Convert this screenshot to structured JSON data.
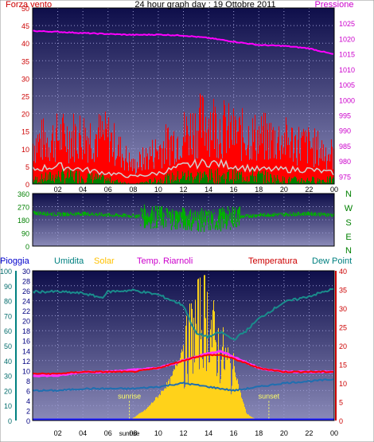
{
  "chart_data": [
    {
      "type": "line",
      "title": "24 hour graph day : 19 Ottobre 2011",
      "left_axis_label": "Forza vento",
      "right_axis_label": "Pressione",
      "left_ticks": [
        0,
        5,
        10,
        15,
        20,
        25,
        30,
        35,
        40,
        45,
        50
      ],
      "right_ticks": [
        975,
        980,
        985,
        990,
        995,
        1000,
        1005,
        1010,
        1015,
        1020,
        1025
      ],
      "x_ticks": [
        "02",
        "04",
        "06",
        "08",
        "10",
        "12",
        "14",
        "16",
        "18",
        "20",
        "22",
        "00"
      ],
      "ylim_left": [
        0,
        50
      ],
      "ylim_right": [
        972.5,
        1030
      ],
      "colors": {
        "gust": "#ff0000",
        "average": "#d0d0d0",
        "min": "#008000",
        "pressure": "#ff00ff"
      },
      "series": [
        {
          "key": "pressure",
          "axis": "right",
          "x": [
            0,
            2,
            4,
            6,
            8,
            10,
            12,
            14,
            16,
            18,
            20,
            22,
            24
          ],
          "values": [
            1022.5,
            1022.2,
            1021.8,
            1021.5,
            1021.2,
            1021.3,
            1021.0,
            1020.2,
            1019.0,
            1017.9,
            1017.6,
            1016.8,
            1014.8
          ]
        },
        {
          "key": "gust",
          "axis": "left",
          "x": [
            0,
            2,
            4,
            6,
            8,
            10,
            12,
            14,
            16,
            18,
            20,
            22,
            24
          ],
          "values": [
            14,
            16,
            17,
            16,
            6,
            12,
            17,
            22,
            17,
            16,
            15,
            13,
            10
          ]
        },
        {
          "key": "average",
          "axis": "left",
          "x": [
            0,
            2,
            4,
            6,
            8,
            10,
            12,
            14,
            16,
            18,
            20,
            22,
            24
          ],
          "values": [
            4,
            5,
            4,
            3,
            2,
            3,
            5,
            6,
            5,
            4,
            4,
            4,
            3
          ]
        },
        {
          "key": "min",
          "axis": "left",
          "x": [
            0,
            2,
            4,
            6,
            8,
            10,
            12,
            14,
            16,
            18,
            20,
            22,
            24
          ],
          "values": [
            1,
            2,
            2,
            1,
            0,
            1,
            2,
            2,
            2,
            2,
            1,
            1,
            1
          ]
        }
      ]
    },
    {
      "type": "scatter",
      "left_ticks": [
        0,
        90,
        180,
        270,
        360
      ],
      "right_labels": [
        "N",
        "W",
        "S",
        "E",
        "N"
      ],
      "x_ticks": [],
      "ylim": [
        0,
        360
      ],
      "colors": {
        "direction": "#00b000"
      },
      "series": [
        {
          "key": "direction",
          "x": [
            0,
            2,
            4,
            6,
            8,
            10,
            12,
            14,
            16,
            18,
            20,
            22,
            24
          ],
          "values": [
            230,
            220,
            225,
            215,
            210,
            200,
            190,
            175,
            200,
            215,
            220,
            225,
            215
          ]
        }
      ]
    },
    {
      "type": "line",
      "legend": [
        {
          "label": "Pioggia",
          "color": "#0000cc"
        },
        {
          "label": "Umidita",
          "color": "#008080"
        },
        {
          "label": "Solar",
          "color": "#ffc000"
        },
        {
          "label": "Temp. Riarnoli",
          "color": "#cc00cc"
        },
        {
          "label": "Temperatura",
          "color": "#cc0000"
        },
        {
          "label": "Dew Point",
          "color": "#008080"
        }
      ],
      "humidity_ticks": [
        0,
        10,
        20,
        30,
        40,
        50,
        60,
        70,
        80,
        90,
        100
      ],
      "rain_ticks": [
        0,
        2,
        4,
        6,
        8,
        10,
        12,
        14,
        16,
        18,
        20,
        22,
        24,
        26,
        28,
        30
      ],
      "temp_ticks": [
        0,
        5,
        10,
        15,
        20,
        25,
        30,
        35,
        40
      ],
      "x_ticks": [
        "02",
        "04",
        "06",
        "08",
        "10",
        "12",
        "14",
        "16",
        "18",
        "20",
        "22",
        "00"
      ],
      "annotations": [
        "sunrise",
        "sunset"
      ],
      "ylim_humidity": [
        0,
        100
      ],
      "ylim_temp": [
        0,
        40
      ],
      "series": [
        {
          "key": "humidity",
          "axis": "humidity",
          "x": [
            0,
            2,
            4,
            5.5,
            6,
            8,
            10,
            12,
            13,
            14,
            15,
            16,
            17,
            18,
            20,
            22,
            24
          ],
          "values": [
            86,
            86,
            85,
            82,
            86,
            87,
            84,
            77,
            58,
            56,
            59,
            54,
            60,
            68,
            79,
            83,
            88
          ]
        },
        {
          "key": "temp_riarnoli",
          "axis": "temp",
          "x": [
            0,
            2,
            4,
            6,
            8,
            10,
            12,
            13,
            14,
            15,
            16,
            18,
            20,
            22,
            24
          ],
          "values": [
            12,
            12,
            13,
            13,
            13.5,
            14,
            16,
            17,
            18,
            18.5,
            17,
            14,
            13,
            13,
            13
          ]
        },
        {
          "key": "temperatura",
          "axis": "temp",
          "x": [
            0,
            2,
            4,
            6,
            8,
            10,
            12,
            13,
            14,
            15,
            16,
            18,
            20,
            22,
            24
          ],
          "values": [
            12.5,
            12.5,
            13,
            13,
            13,
            14,
            16,
            17,
            17.5,
            17.5,
            16.5,
            14,
            13,
            13,
            13
          ]
        },
        {
          "key": "dew_point",
          "axis": "temp",
          "x": [
            0,
            2,
            4,
            6,
            8,
            10,
            12,
            14,
            16,
            18,
            20,
            22,
            24
          ],
          "values": [
            8,
            8,
            8.5,
            8.5,
            8.5,
            9,
            10,
            9,
            8,
            9,
            10,
            10.5,
            11
          ]
        },
        {
          "key": "rain",
          "axis": "rain",
          "x": [
            0,
            24
          ],
          "values": [
            0,
            0
          ]
        },
        {
          "key": "solar",
          "axis": "solar_pct",
          "x": [
            7.5,
            8,
            9,
            10,
            11,
            12,
            12.5,
            13,
            13.5,
            14,
            14.5,
            15,
            15.5,
            16,
            16.5,
            17,
            17.5,
            18
          ],
          "values": [
            0,
            2,
            8,
            18,
            30,
            55,
            75,
            85,
            95,
            90,
            70,
            60,
            52,
            40,
            20,
            5,
            2,
            0
          ]
        }
      ],
      "sunrise_hour": 7.7,
      "sunset_hour": 18.8
    }
  ]
}
